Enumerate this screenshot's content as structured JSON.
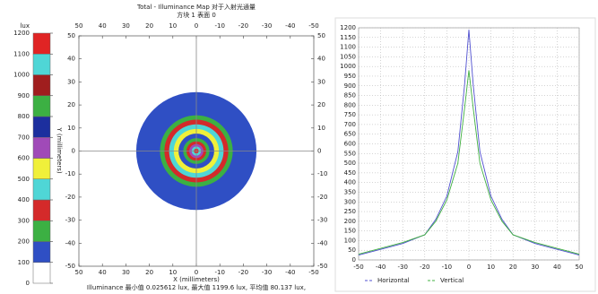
{
  "chart_data": [
    {
      "type": "illuminance-map",
      "title": "Total - Illuminance Map 对于入射光通量",
      "subtitle": "方块 1 表面 0",
      "xlabel": "X (millimeters)",
      "ylabel": "Y (millimeters)",
      "footer": "Illuminance 最小值 0.025612 lux, 最大值 1199.6 lux, 平均值 80.137 lux,",
      "xlim": [
        50,
        -50
      ],
      "xticks": [
        50,
        40,
        30,
        20,
        10,
        0,
        -10,
        -20,
        -30,
        -40,
        -50
      ],
      "ylim": [
        50,
        -50
      ],
      "yticks": [
        50,
        40,
        30,
        20,
        10,
        0,
        -10,
        -20,
        -30,
        -40,
        -50
      ],
      "colorbar_label": "lux",
      "colorbar_ticks": [
        0,
        100,
        200,
        300,
        400,
        500,
        600,
        700,
        800,
        900,
        1000,
        1100,
        1200
      ],
      "colorbar_colors": [
        "#ffffff",
        "#2f4fc4",
        "#3cb043",
        "#d42a2a",
        "#4fd6d6",
        "#f0f03a",
        "#a04ab8",
        "#1c2f9e",
        "#3cb043",
        "#a01e1e",
        "#4fd6d6",
        "#e02424"
      ],
      "rings": [
        {
          "r": 25.6,
          "color": "#2f4fc4"
        },
        {
          "r": 15.5,
          "color": "#3cb043"
        },
        {
          "r": 13.6,
          "color": "#d42a2a"
        },
        {
          "r": 11.6,
          "color": "#4fd6d6"
        },
        {
          "r": 9.6,
          "color": "#f0f03a"
        },
        {
          "r": 7.6,
          "color": "#2f4fc4"
        },
        {
          "r": 5.6,
          "color": "#3cb043"
        },
        {
          "r": 4.2,
          "color": "#d42a2a"
        },
        {
          "r": 3.0,
          "color": "#a04ab8"
        },
        {
          "r": 2.0,
          "color": "#4fd6d6"
        },
        {
          "r": 1.0,
          "color": "#e02424"
        }
      ]
    },
    {
      "type": "line",
      "x": [
        -50,
        -40,
        -30,
        -20,
        -15,
        -10,
        -5,
        -2,
        0,
        2,
        5,
        10,
        15,
        20,
        30,
        40,
        50
      ],
      "series": [
        {
          "name": "Horizontal",
          "color": "#5050d0",
          "values": [
            25,
            55,
            85,
            130,
            210,
            330,
            560,
            900,
            1190,
            900,
            560,
            330,
            210,
            130,
            85,
            55,
            25
          ]
        },
        {
          "name": "Vertical",
          "color": "#40b040",
          "values": [
            30,
            60,
            90,
            130,
            200,
            310,
            500,
            780,
            980,
            780,
            500,
            310,
            200,
            130,
            90,
            60,
            30
          ]
        }
      ],
      "xlim": [
        -50,
        50
      ],
      "xticks": [
        -50,
        -40,
        -30,
        -20,
        -10,
        0,
        10,
        20,
        30,
        40,
        50
      ],
      "ylim": [
        0,
        1200
      ],
      "yticks": [
        0,
        50,
        100,
        150,
        200,
        250,
        300,
        350,
        400,
        450,
        500,
        550,
        600,
        650,
        700,
        750,
        800,
        850,
        900,
        950,
        1000,
        1050,
        1100,
        1150,
        1200
      ],
      "grid": true,
      "legend": "bottom"
    }
  ]
}
